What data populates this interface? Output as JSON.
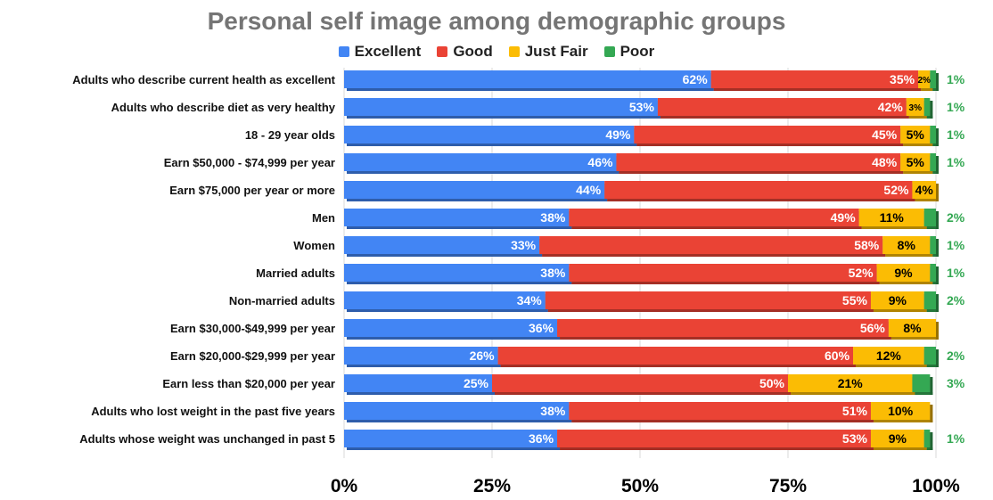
{
  "chart_data": {
    "type": "bar",
    "orientation": "horizontal",
    "stacked": true,
    "title": "Personal self image among demographic groups",
    "legend_position": "top",
    "categories": [
      "Adults who describe current health as excellent",
      "Adults who describe diet as very healthy",
      "18 - 29 year olds",
      "Earn $50,000 - $74,999 per year",
      "Earn $75,000 per year or more",
      "Men",
      "Women",
      "Married adults",
      "Non-married adults",
      "Earn $30,000-$49,999 per year",
      "Earn $20,000-$29,999 per year",
      "Earn less than $20,000 per year",
      "Adults who lost weight in the past five years",
      "Adults whose weight was unchanged in past 5"
    ],
    "series": [
      {
        "name": "Excellent",
        "color": "#4285f4",
        "values": [
          62,
          53,
          49,
          46,
          44,
          38,
          33,
          38,
          34,
          36,
          26,
          25,
          38,
          36
        ]
      },
      {
        "name": "Good",
        "color": "#ea4335",
        "values": [
          35,
          42,
          45,
          48,
          52,
          49,
          58,
          52,
          55,
          56,
          60,
          50,
          51,
          53
        ]
      },
      {
        "name": "Just Fair",
        "color": "#fbbc04",
        "values": [
          2,
          3,
          5,
          5,
          4,
          11,
          8,
          9,
          9,
          8,
          12,
          21,
          10,
          9
        ]
      },
      {
        "name": "Poor",
        "color": "#34a853",
        "values": [
          1,
          1,
          1,
          1,
          null,
          2,
          1,
          1,
          2,
          null,
          2,
          3,
          null,
          1
        ]
      }
    ],
    "x_axis": {
      "range": [
        0,
        100
      ],
      "ticks": [
        0,
        25,
        50,
        75,
        100
      ],
      "tick_labels": [
        "0%",
        "25%",
        "50%",
        "75%",
        "100%"
      ]
    },
    "ylabel": "",
    "xlabel": ""
  }
}
